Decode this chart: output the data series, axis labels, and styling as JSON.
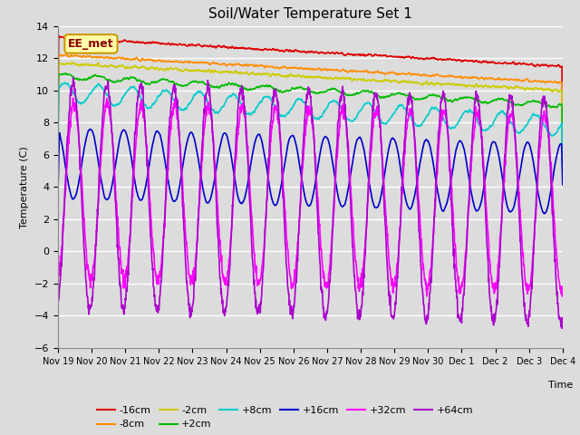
{
  "title": "Soil/Water Temperature Set 1",
  "xlabel": "Time",
  "ylabel": "Temperature (C)",
  "ylim": [
    -6,
    14
  ],
  "annotation": "EE_met",
  "background_color": "#dcdcdc",
  "figure_bg": "#dcdcdc",
  "grid_color": "#ffffff",
  "series_order": [
    "-16cm",
    "-8cm",
    "-2cm",
    "+2cm",
    "+8cm",
    "+16cm",
    "+32cm",
    "+64cm"
  ],
  "series": {
    "-16cm": {
      "color": "#dd0000",
      "lw": 1.2
    },
    "-8cm": {
      "color": "#ff8c00",
      "lw": 1.2
    },
    "-2cm": {
      "color": "#cccc00",
      "lw": 1.2
    },
    "+2cm": {
      "color": "#00bb00",
      "lw": 1.2
    },
    "+8cm": {
      "color": "#00cccc",
      "lw": 1.2
    },
    "+16cm": {
      "color": "#0000cc",
      "lw": 1.2
    },
    "+32cm": {
      "color": "#ff00ff",
      "lw": 1.2
    },
    "+64cm": {
      "color": "#aa00cc",
      "lw": 1.2
    }
  },
  "xtick_labels": [
    "Nov 19",
    "Nov 20",
    "Nov 21",
    "Nov 22",
    "Nov 23",
    "Nov 24",
    "Nov 25",
    "Nov 26",
    "Nov 27",
    "Nov 28",
    "Nov 29",
    "Nov 30",
    "Dec 1",
    "Dec 2",
    "Dec 3",
    "Dec 4"
  ]
}
